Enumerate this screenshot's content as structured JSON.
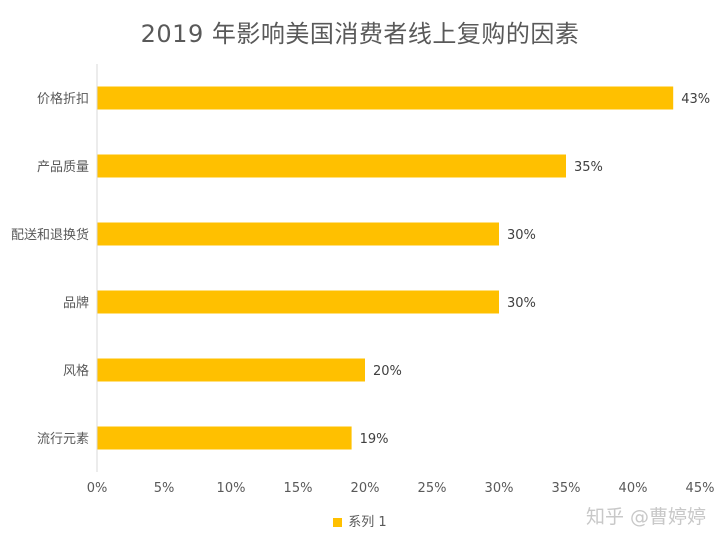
{
  "colors": {
    "bar": "#FFC000",
    "axis": "#D9D9D9",
    "text": "#595959"
  },
  "watermark": "知乎 @曹婷婷",
  "chart_data": {
    "type": "bar",
    "orientation": "horizontal",
    "title": "2019 年影响美国消费者线上复购的因素",
    "categories": [
      "价格折扣",
      "产品质量",
      "配送和退换货",
      "品牌",
      "风格",
      "流行元素"
    ],
    "series": [
      {
        "name": "系列 1",
        "values": [
          43,
          35,
          30,
          30,
          20,
          19
        ]
      }
    ],
    "data_labels": [
      "43%",
      "35%",
      "30%",
      "30%",
      "20%",
      "19%"
    ],
    "xlim": [
      0,
      45
    ],
    "x_ticks": [
      "0%",
      "5%",
      "10%",
      "15%",
      "20%",
      "25%",
      "30%",
      "35%",
      "40%",
      "45%"
    ],
    "grid": false,
    "legend_position": "bottom"
  }
}
